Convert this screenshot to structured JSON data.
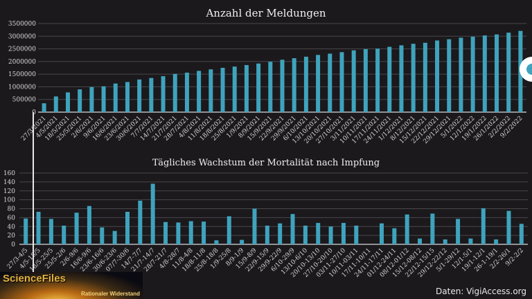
{
  "chart_data": [
    {
      "type": "bar",
      "title": "Anzahl der Meldungen",
      "ylim": [
        0,
        3500000
      ],
      "yticks": [
        0,
        500000,
        1000000,
        1500000,
        2000000,
        2500000,
        3000000,
        3500000
      ],
      "grid": true,
      "color": "#3fa3bd",
      "categories": [
        "27/3/2021",
        "4/5/2021",
        "18/5/2021",
        "25/5/2021",
        "2/6/2021",
        "9/6/2021",
        "16/6/2021",
        "23/6/2021",
        "30/6/2021",
        "7/7/2021",
        "14/7/2021",
        "21/7/2021",
        "28/7/2021",
        "4/8/2021",
        "11/8/2021",
        "18/8/2021",
        "25/8/2021",
        "1/9/2021",
        "8/9/2021",
        "15/9/2021",
        "22/9/2021",
        "29/9/2021",
        "6/10/2021",
        "13/10/2021",
        "20/10/2021",
        "27/10/2021",
        "3/11/2021",
        "10/11/2021",
        "17/11/2021",
        "24/11/2021",
        "1/12/2021",
        "8/12/2021",
        "15/12/2021",
        "22/12/2021",
        "29/12/2021",
        "5/1/2022",
        "12/1/2022",
        "19/1/2022",
        "26/1/2022",
        "2/2/2022",
        "9/2/2022"
      ],
      "values": [
        350000,
        620000,
        780000,
        900000,
        990000,
        1020000,
        1130000,
        1190000,
        1290000,
        1350000,
        1420000,
        1510000,
        1560000,
        1630000,
        1690000,
        1750000,
        1800000,
        1860000,
        1920000,
        1990000,
        2070000,
        2130000,
        2190000,
        2260000,
        2310000,
        2370000,
        2440000,
        2490000,
        2510000,
        2580000,
        2640000,
        2700000,
        2740000,
        2830000,
        2880000,
        2940000,
        2980000,
        3030000,
        3070000,
        3140000,
        3210000
      ]
    },
    {
      "type": "bar",
      "title": "Tägliches Wachstum der Mortalität nach Impfung",
      "ylim": [
        0,
        160
      ],
      "yticks": [
        0,
        20,
        40,
        60,
        80,
        100,
        120,
        140,
        160
      ],
      "grid": true,
      "color": "#3fa3bd",
      "categories": [
        "27/3-4/5",
        "4/5-18/5",
        "18/5-25/5",
        "25/5-2/6",
        "2/6-9/6",
        "16/6-9/6",
        "23/6-16/6",
        "30/6-23/6",
        "07/7-30/6",
        "14/7-7/7",
        "21/7-14/7",
        "28/7-21/7",
        "4/8-28/7",
        "11/8-4/8",
        "18/8-11/8",
        "25/8-18/8",
        "1/9-25/8",
        "8/9-1/9",
        "15/9-8/9",
        "22/9-15/9",
        "29/9-22/9",
        "6/10-29/9",
        "13/10-6/10",
        "20/10-13/10",
        "27/10-20/10",
        "03/11-27/10",
        "10/11-03/11",
        "17/11-10/11",
        "24/11-17/11",
        "01/12-24/11",
        "08/12-01/12",
        "15/12-08/12",
        "22/12-15/15",
        "29/12-22/12",
        "5/1-29/12",
        "12/1-5/1",
        "19/1-12/1",
        "26-1-19/1",
        "2/2-26/1",
        "9/2-2/2"
      ],
      "values": [
        58,
        73,
        57,
        42,
        71,
        86,
        38,
        30,
        73,
        98,
        136,
        50,
        49,
        52,
        51,
        9,
        63,
        10,
        80,
        42,
        47,
        68,
        42,
        48,
        40,
        48,
        42,
        0,
        47,
        36,
        67,
        13,
        69,
        11,
        57,
        13,
        81,
        11,
        75,
        46
      ]
    }
  ],
  "logo": {
    "name": "ScienceFiles",
    "tagline": "Rationaler Widerstand"
  },
  "source": "Daten: VigiAccess.org"
}
